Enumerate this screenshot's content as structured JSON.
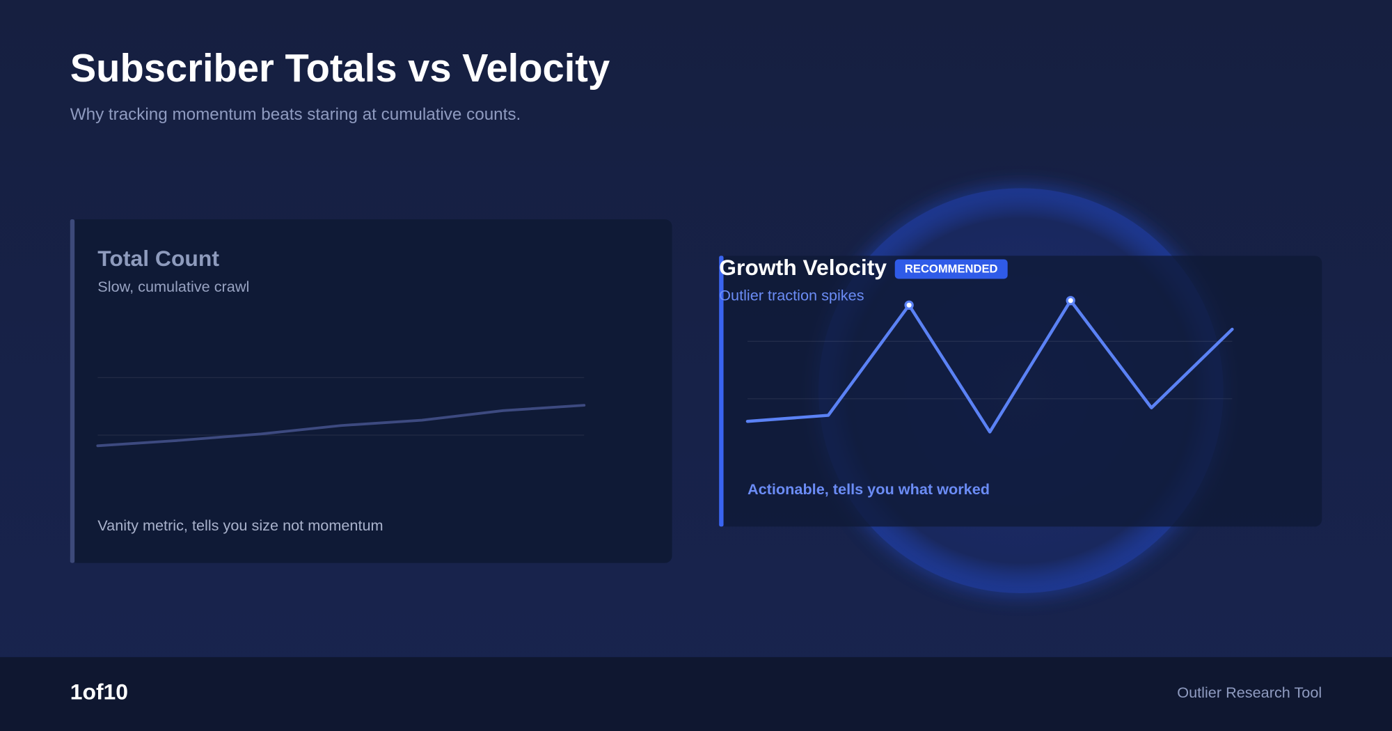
{
  "header": {
    "title": "Subscriber Totals vs Velocity",
    "subtitle": "Why tracking momentum beats staring at cumulative counts."
  },
  "chart_data": [
    {
      "type": "line",
      "title": "Total Count",
      "subtitle": "Slow, cumulative crawl",
      "annotation": "Vanity metric, tells you size not momentum",
      "series": [
        {
          "color": "#3d4a80",
          "values": [
            15,
            20,
            26,
            34,
            39,
            48,
            53
          ]
        }
      ],
      "ylim": [
        0,
        100
      ],
      "yticks": [
        25,
        79
      ],
      "grid": true
    },
    {
      "type": "line",
      "title": "Growth Velocity",
      "badge": "RECOMMENDED",
      "subtitle": "Outlier traction spikes",
      "annotation": "Actionable, tells you what worked",
      "series": [
        {
          "color": "#5b82f5",
          "values": [
            15,
            19,
            92,
            8,
            95,
            24,
            76
          ]
        }
      ],
      "ylim": [
        0,
        100
      ],
      "yticks": [
        30,
        68
      ],
      "grid": true
    }
  ],
  "footer": {
    "page": "1of10",
    "brand": "Outlier Research Tool"
  }
}
